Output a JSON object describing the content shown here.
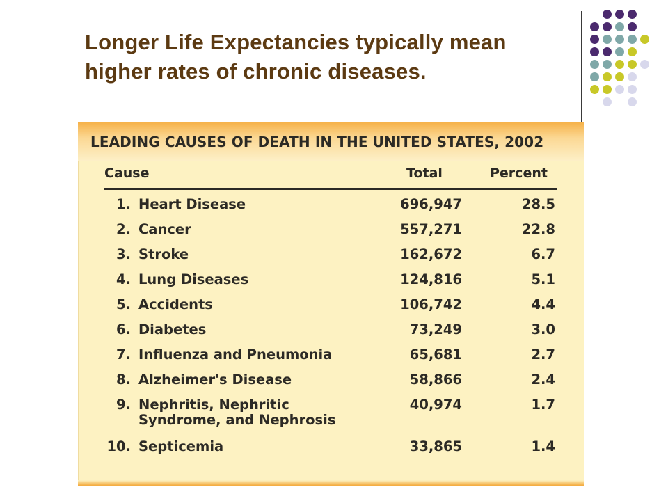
{
  "slide": {
    "title_line1": "Longer Life Expectancies typically mean",
    "title_line2": "higher rates of chronic diseases."
  },
  "decoration": {
    "dot_colors": {
      "purple": "#4b2a6e",
      "teal": "#7fa8a8",
      "olive": "#c8c828",
      "lavender": "#d8d8ec"
    }
  },
  "table": {
    "title": "LEADING CAUSES OF DEATH IN THE UNITED STATES, 2002",
    "headers": {
      "cause": "Cause",
      "total": "Total",
      "percent": "Percent"
    },
    "rows": [
      {
        "rank": "1.",
        "cause": "Heart Disease",
        "total": "696,947",
        "percent": "28.5"
      },
      {
        "rank": "2.",
        "cause": "Cancer",
        "total": "557,271",
        "percent": "22.8"
      },
      {
        "rank": "3.",
        "cause": "Stroke",
        "total": "162,672",
        "percent": "6.7"
      },
      {
        "rank": "4.",
        "cause": "Lung Diseases",
        "total": "124,816",
        "percent": "5.1"
      },
      {
        "rank": "5.",
        "cause": "Accidents",
        "total": "106,742",
        "percent": "4.4"
      },
      {
        "rank": "6.",
        "cause": "Diabetes",
        "total": "73,249",
        "percent": "3.0"
      },
      {
        "rank": "7.",
        "cause": "Influenza and Pneumonia",
        "total": "65,681",
        "percent": "2.7"
      },
      {
        "rank": "8.",
        "cause": "Alzheimer's Disease",
        "total": "58,866",
        "percent": "2.4"
      },
      {
        "rank": "9.",
        "cause": "Nephritis, Nephritic",
        "cause_line2": "Syndrome, and Nephrosis",
        "total": "40,974",
        "percent": "1.7"
      },
      {
        "rank": "10.",
        "cause": "Septicemia",
        "total": "33,865",
        "percent": "1.4"
      }
    ]
  }
}
